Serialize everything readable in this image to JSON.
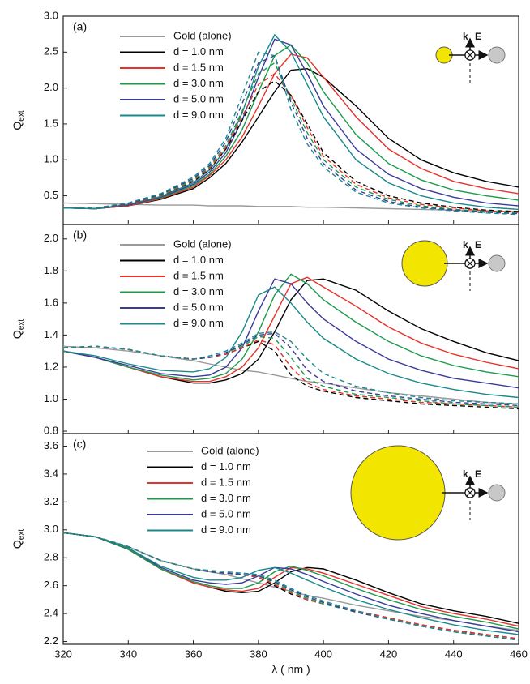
{
  "chart_data": [
    {
      "type": "line",
      "label": "(a)",
      "ylabel": "Q",
      "ylabel_sub": "ext",
      "inset_labels": [
        "k",
        "E"
      ],
      "legend": "upper left",
      "x": [
        320,
        330,
        340,
        350,
        360,
        365,
        370,
        375,
        380,
        385,
        390,
        395,
        400,
        410,
        420,
        430,
        440,
        450,
        460
      ],
      "xlim": [
        320,
        460
      ],
      "xticks": [
        320,
        340,
        360,
        380,
        400,
        420,
        440,
        460
      ],
      "ylim": [
        0.1,
        3.0
      ],
      "yticks": [
        0.5,
        {
          "value": 1,
          "label": "1.0"
        },
        1.5,
        {
          "value": 2,
          "label": "2.0"
        },
        2.5,
        {
          "value": 3,
          "label": "3.0"
        }
      ],
      "series": [
        {
          "name": "Gold (alone)",
          "color": "#9a9a9a",
          "values": [
            0.4,
            0.39,
            0.38,
            0.37,
            0.37,
            0.36,
            0.36,
            0.36,
            0.35,
            0.35,
            0.35,
            0.34,
            0.34,
            0.33,
            0.32,
            0.31,
            0.3,
            0.29,
            0.28
          ]
        },
        {
          "name": "d = 1.0 nm",
          "color": "#000000",
          "values": [
            0.33,
            0.32,
            0.36,
            0.45,
            0.6,
            0.75,
            0.95,
            1.25,
            1.6,
            1.95,
            2.25,
            2.27,
            2.15,
            1.75,
            1.3,
            1.0,
            0.82,
            0.7,
            0.62
          ]
        },
        {
          "name": "d = 1.5 nm",
          "color": "#e8312a",
          "values": [
            0.33,
            0.32,
            0.36,
            0.46,
            0.62,
            0.78,
            1.0,
            1.32,
            1.75,
            2.2,
            2.47,
            2.42,
            2.15,
            1.6,
            1.15,
            0.88,
            0.7,
            0.6,
            0.53
          ]
        },
        {
          "name": "d = 3.0 nm",
          "color": "#1a9a4a",
          "values": [
            0.33,
            0.32,
            0.37,
            0.47,
            0.64,
            0.8,
            1.05,
            1.42,
            1.95,
            2.45,
            2.6,
            2.35,
            1.95,
            1.35,
            0.95,
            0.72,
            0.58,
            0.5,
            0.44
          ]
        },
        {
          "name": "d = 5.0 nm",
          "color": "#3a3a9a",
          "values": [
            0.33,
            0.32,
            0.37,
            0.48,
            0.66,
            0.83,
            1.1,
            1.55,
            2.15,
            2.68,
            2.6,
            2.2,
            1.75,
            1.15,
            0.8,
            0.6,
            0.48,
            0.4,
            0.36
          ]
        },
        {
          "name": "d = 9.0 nm",
          "color": "#1a8a8a",
          "values": [
            0.33,
            0.32,
            0.38,
            0.49,
            0.68,
            0.86,
            1.15,
            1.65,
            2.3,
            2.74,
            2.5,
            2.05,
            1.6,
            1.0,
            0.68,
            0.5,
            0.4,
            0.34,
            0.31
          ]
        },
        {
          "color": "#000000",
          "dashed": true,
          "values": [
            0.33,
            0.33,
            0.38,
            0.5,
            0.7,
            0.87,
            1.15,
            1.55,
            1.95,
            2.1,
            1.9,
            1.5,
            1.1,
            0.7,
            0.5,
            0.4,
            0.34,
            0.3,
            0.28
          ]
        },
        {
          "color": "#e8312a",
          "dashed": true,
          "values": [
            0.33,
            0.33,
            0.38,
            0.5,
            0.71,
            0.88,
            1.17,
            1.6,
            2.05,
            2.2,
            1.9,
            1.45,
            1.05,
            0.66,
            0.47,
            0.38,
            0.33,
            0.29,
            0.27
          ]
        },
        {
          "color": "#1a9a4a",
          "dashed": true,
          "values": [
            0.33,
            0.33,
            0.39,
            0.51,
            0.72,
            0.9,
            1.2,
            1.68,
            2.2,
            2.35,
            1.85,
            1.38,
            1.0,
            0.62,
            0.45,
            0.36,
            0.31,
            0.28,
            0.26
          ]
        },
        {
          "color": "#3a3a9a",
          "dashed": true,
          "values": [
            0.33,
            0.33,
            0.39,
            0.52,
            0.74,
            0.92,
            1.25,
            1.78,
            2.35,
            2.45,
            1.8,
            1.3,
            0.95,
            0.58,
            0.42,
            0.34,
            0.3,
            0.27,
            0.25
          ]
        },
        {
          "color": "#1a8a8a",
          "dashed": true,
          "values": [
            0.33,
            0.33,
            0.4,
            0.53,
            0.76,
            0.95,
            1.3,
            1.9,
            2.5,
            2.45,
            1.7,
            1.22,
            0.9,
            0.55,
            0.4,
            0.33,
            0.29,
            0.26,
            0.24
          ]
        }
      ]
    },
    {
      "type": "line",
      "label": "(b)",
      "ylabel": "Q",
      "ylabel_sub": "ext",
      "inset_labels": [
        "k",
        "E"
      ],
      "legend": "upper left",
      "x": [
        320,
        330,
        340,
        350,
        360,
        365,
        370,
        375,
        380,
        385,
        390,
        395,
        400,
        410,
        420,
        430,
        440,
        450,
        460
      ],
      "xlim": [
        320,
        460
      ],
      "xticks": [
        320,
        340,
        360,
        380,
        400,
        420,
        440,
        460
      ],
      "ylim": [
        0.785,
        2.09
      ],
      "yticks": [
        0.8,
        {
          "value": 1,
          "label": "1.0"
        },
        1.2,
        1.4,
        1.6,
        1.8,
        {
          "value": 2,
          "label": "2.0"
        }
      ],
      "series": [
        {
          "name": "Gold (alone)",
          "color": "#9a9a9a",
          "values": [
            1.33,
            1.32,
            1.3,
            1.27,
            1.24,
            1.22,
            1.2,
            1.18,
            1.17,
            1.15,
            1.13,
            1.11,
            1.1,
            1.07,
            1.04,
            1.02,
            1.0,
            0.98,
            0.97
          ]
        },
        {
          "name": "d = 1.0 nm",
          "color": "#000000",
          "values": [
            1.3,
            1.26,
            1.2,
            1.14,
            1.1,
            1.1,
            1.12,
            1.16,
            1.25,
            1.42,
            1.62,
            1.74,
            1.75,
            1.68,
            1.55,
            1.44,
            1.36,
            1.29,
            1.24
          ]
        },
        {
          "name": "d = 1.5 nm",
          "color": "#e8312a",
          "values": [
            1.3,
            1.26,
            1.2,
            1.14,
            1.11,
            1.11,
            1.14,
            1.2,
            1.32,
            1.52,
            1.72,
            1.76,
            1.7,
            1.58,
            1.45,
            1.35,
            1.28,
            1.23,
            1.19
          ]
        },
        {
          "name": "d = 3.0 nm",
          "color": "#1a9a4a",
          "values": [
            1.3,
            1.26,
            1.2,
            1.15,
            1.12,
            1.13,
            1.16,
            1.25,
            1.42,
            1.65,
            1.78,
            1.72,
            1.62,
            1.48,
            1.36,
            1.27,
            1.21,
            1.17,
            1.14
          ]
        },
        {
          "name": "d = 5.0 nm",
          "color": "#3a3a9a",
          "values": [
            1.3,
            1.26,
            1.21,
            1.16,
            1.14,
            1.15,
            1.2,
            1.32,
            1.55,
            1.75,
            1.72,
            1.6,
            1.5,
            1.36,
            1.25,
            1.18,
            1.13,
            1.1,
            1.07
          ]
        },
        {
          "name": "d = 9.0 nm",
          "color": "#1a8a8a",
          "values": [
            1.3,
            1.27,
            1.22,
            1.18,
            1.17,
            1.19,
            1.26,
            1.42,
            1.65,
            1.7,
            1.6,
            1.48,
            1.38,
            1.25,
            1.16,
            1.1,
            1.06,
            1.03,
            1.01
          ]
        },
        {
          "color": "#000000",
          "dashed": true,
          "values": [
            1.32,
            1.33,
            1.31,
            1.27,
            1.25,
            1.26,
            1.28,
            1.32,
            1.36,
            1.3,
            1.15,
            1.08,
            1.05,
            1.01,
            0.99,
            0.97,
            0.96,
            0.95,
            0.94
          ]
        },
        {
          "color": "#e8312a",
          "dashed": true,
          "values": [
            1.32,
            1.33,
            1.31,
            1.27,
            1.25,
            1.26,
            1.28,
            1.32,
            1.37,
            1.34,
            1.2,
            1.1,
            1.06,
            1.02,
            1.0,
            0.98,
            0.97,
            0.96,
            0.95
          ]
        },
        {
          "color": "#1a9a4a",
          "dashed": true,
          "values": [
            1.32,
            1.33,
            1.31,
            1.27,
            1.25,
            1.26,
            1.29,
            1.33,
            1.39,
            1.38,
            1.26,
            1.13,
            1.08,
            1.03,
            1.01,
            0.99,
            0.97,
            0.96,
            0.95
          ]
        },
        {
          "color": "#3a3a9a",
          "dashed": true,
          "values": [
            1.32,
            1.33,
            1.31,
            1.27,
            1.25,
            1.26,
            1.29,
            1.34,
            1.4,
            1.41,
            1.32,
            1.18,
            1.11,
            1.05,
            1.02,
            1.0,
            0.98,
            0.97,
            0.96
          ]
        },
        {
          "color": "#1a8a8a",
          "dashed": true,
          "values": [
            1.32,
            1.33,
            1.31,
            1.27,
            1.25,
            1.27,
            1.3,
            1.35,
            1.41,
            1.42,
            1.36,
            1.25,
            1.16,
            1.08,
            1.04,
            1.01,
            0.99,
            0.98,
            0.97
          ]
        }
      ]
    },
    {
      "type": "line",
      "label": "(c)",
      "ylabel": "Q",
      "ylabel_sub": "ext",
      "xlabel": "λ ( nm )",
      "inset_labels": [
        "k",
        "E"
      ],
      "legend": "upper left",
      "x": [
        320,
        330,
        340,
        350,
        360,
        365,
        370,
        375,
        380,
        385,
        390,
        395,
        400,
        410,
        420,
        430,
        440,
        450,
        460
      ],
      "xlim": [
        320,
        460
      ],
      "xticks": [
        320,
        340,
        360,
        380,
        400,
        420,
        440,
        460
      ],
      "ylim": [
        2.18,
        3.69
      ],
      "yticks": [
        2.2,
        2.4,
        2.6,
        2.8,
        {
          "value": 3,
          "label": "3.0"
        },
        3.2,
        3.4,
        3.6
      ],
      "series": [
        {
          "name": "Gold (alone)",
          "color": "#9a9a9a",
          "values": [
            2.98,
            2.95,
            2.88,
            2.78,
            2.72,
            2.7,
            2.68,
            2.65,
            2.62,
            2.59,
            2.56,
            2.53,
            2.51,
            2.46,
            2.42,
            2.38,
            2.35,
            2.31,
            2.28
          ]
        },
        {
          "name": "d = 1.0 nm",
          "color": "#000000",
          "values": [
            2.98,
            2.95,
            2.86,
            2.72,
            2.62,
            2.59,
            2.56,
            2.55,
            2.56,
            2.62,
            2.7,
            2.73,
            2.72,
            2.64,
            2.55,
            2.47,
            2.42,
            2.38,
            2.33
          ]
        },
        {
          "name": "d = 1.5 nm",
          "color": "#e8312a",
          "values": [
            2.98,
            2.95,
            2.86,
            2.72,
            2.62,
            2.59,
            2.57,
            2.56,
            2.58,
            2.66,
            2.73,
            2.72,
            2.69,
            2.61,
            2.53,
            2.45,
            2.4,
            2.36,
            2.31
          ]
        },
        {
          "name": "d = 3.0 nm",
          "color": "#1a9a4a",
          "values": [
            2.98,
            2.95,
            2.86,
            2.72,
            2.63,
            2.6,
            2.58,
            2.58,
            2.62,
            2.7,
            2.74,
            2.71,
            2.67,
            2.58,
            2.5,
            2.43,
            2.38,
            2.34,
            2.29
          ]
        },
        {
          "name": "d = 5.0 nm",
          "color": "#3a3a9a",
          "values": [
            2.98,
            2.95,
            2.87,
            2.73,
            2.64,
            2.62,
            2.61,
            2.62,
            2.67,
            2.73,
            2.72,
            2.68,
            2.63,
            2.54,
            2.46,
            2.4,
            2.35,
            2.31,
            2.27
          ]
        },
        {
          "name": "d = 9.0 nm",
          "color": "#1a8a8a",
          "values": [
            2.98,
            2.95,
            2.87,
            2.74,
            2.66,
            2.64,
            2.64,
            2.66,
            2.71,
            2.73,
            2.69,
            2.64,
            2.59,
            2.5,
            2.43,
            2.37,
            2.32,
            2.28,
            2.25
          ]
        },
        {
          "color": "#000000",
          "dashed": true,
          "values": [
            2.98,
            2.95,
            2.88,
            2.78,
            2.72,
            2.7,
            2.69,
            2.68,
            2.66,
            2.6,
            2.54,
            2.5,
            2.47,
            2.42,
            2.37,
            2.32,
            2.28,
            2.25,
            2.22
          ]
        },
        {
          "color": "#e8312a",
          "dashed": true,
          "values": [
            2.98,
            2.95,
            2.88,
            2.78,
            2.72,
            2.7,
            2.69,
            2.68,
            2.66,
            2.61,
            2.55,
            2.5,
            2.47,
            2.42,
            2.37,
            2.32,
            2.28,
            2.25,
            2.22
          ]
        },
        {
          "color": "#1a9a4a",
          "dashed": true,
          "values": [
            2.98,
            2.95,
            2.88,
            2.78,
            2.72,
            2.7,
            2.69,
            2.68,
            2.67,
            2.62,
            2.56,
            2.51,
            2.47,
            2.41,
            2.36,
            2.31,
            2.27,
            2.24,
            2.21
          ]
        },
        {
          "color": "#3a3a9a",
          "dashed": true,
          "values": [
            2.98,
            2.95,
            2.88,
            2.78,
            2.72,
            2.7,
            2.69,
            2.68,
            2.67,
            2.63,
            2.57,
            2.52,
            2.48,
            2.41,
            2.36,
            2.31,
            2.27,
            2.24,
            2.21
          ]
        },
        {
          "color": "#1a8a8a",
          "dashed": true,
          "values": [
            2.98,
            2.95,
            2.88,
            2.78,
            2.72,
            2.71,
            2.7,
            2.69,
            2.68,
            2.64,
            2.58,
            2.53,
            2.49,
            2.42,
            2.36,
            2.31,
            2.27,
            2.24,
            2.21
          ]
        }
      ]
    }
  ]
}
